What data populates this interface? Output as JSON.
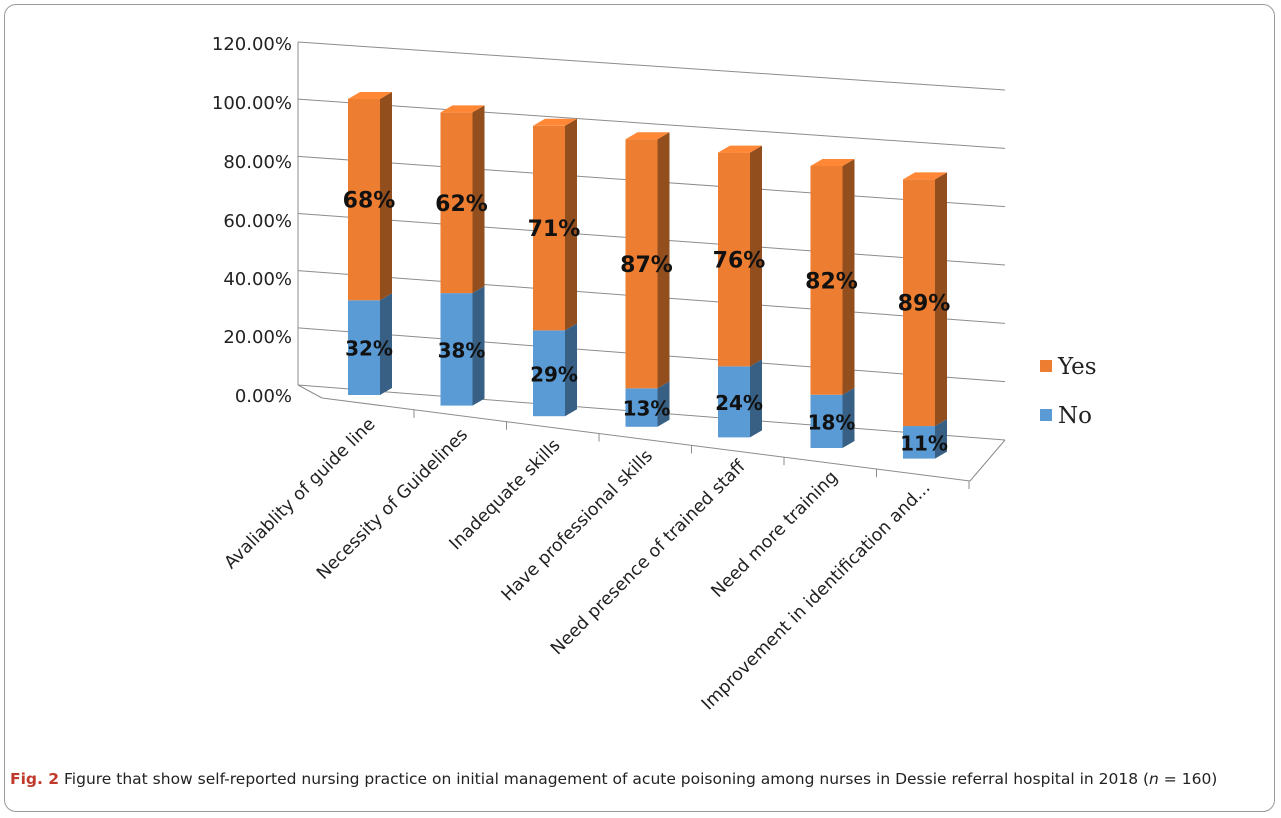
{
  "chart_data": {
    "type": "bar",
    "stacked": true,
    "three_d": true,
    "categories": [
      "Avaliablity of guide line",
      "Necessity of Guidelines",
      "Inadequate skills",
      "Have professional skills",
      "Need presence of trained staff",
      "Need more training",
      "Improvement in identification and..."
    ],
    "series": [
      {
        "name": "No",
        "color": "#5B9BD5",
        "values": [
          32,
          38,
          29,
          13,
          24,
          18,
          11
        ],
        "labels": [
          "32%",
          "38%",
          "29%",
          "13%",
          "24%",
          "18%",
          "11%"
        ]
      },
      {
        "name": "Yes",
        "color": "#ED7D31",
        "values": [
          68,
          62,
          71,
          87,
          76,
          82,
          89
        ],
        "labels": [
          "68%",
          "62%",
          "71%",
          "87%",
          "76%",
          "82%",
          "89%"
        ]
      }
    ],
    "y_ticks": [
      "0.00%",
      "20.00%",
      "40.00%",
      "60.00%",
      "80.00%",
      "100.00%",
      "120.00%"
    ],
    "ylim": [
      0,
      120
    ],
    "legend_position": "right",
    "grid": true
  },
  "caption": {
    "label": "Fig. 2",
    "text_before_n": "Figure that show self-reported nursing practice on initial management of acute poisoning among nurses in Dessie referral hospital in 2018 (",
    "n_symbol": "n",
    "text_after_n": " = 160)"
  }
}
